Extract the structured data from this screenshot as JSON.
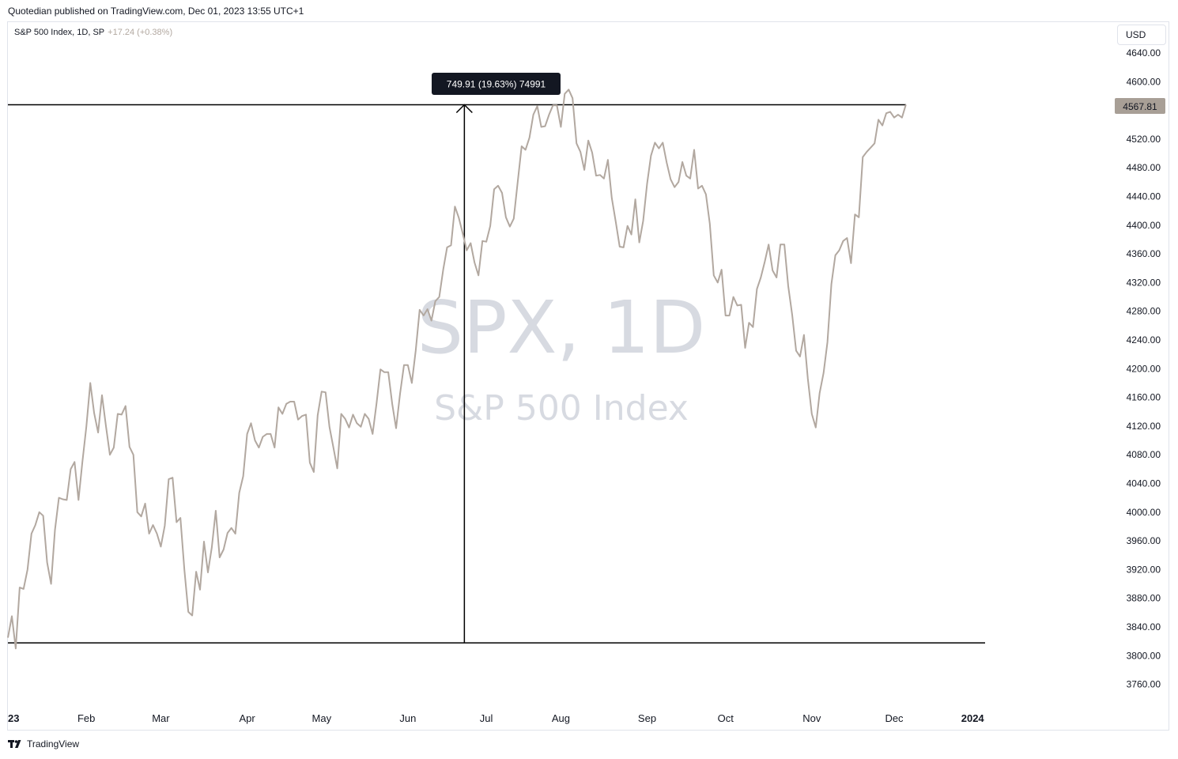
{
  "header": {
    "published": "Quotedian published on TradingView.com, Dec 01, 2023 13:55 UTC+1"
  },
  "legend": {
    "symbol": "S&P 500 Index, 1D, SP",
    "change": "+17.24 (+0.38%)"
  },
  "currency_button": "USD",
  "watermark": {
    "line1": "SPX, 1D",
    "line2": "S&P 500 Index"
  },
  "measure_label": "749.91 (19.63%) 74991",
  "last_price_label": "4567.81",
  "footer": {
    "brand": "TradingView"
  },
  "colors": {
    "line": "#b2a8a0",
    "price_tag": "#a89f96",
    "annotation": "#000000",
    "watermark": "#d1d4dc"
  },
  "chart_data": {
    "type": "line",
    "title": "",
    "xlabel": "",
    "ylabel": "",
    "ylim": [
      3725,
      4680
    ],
    "grid": false,
    "y_ticks": [
      4640,
      4600,
      4560,
      4520,
      4480,
      4440,
      4400,
      4360,
      4320,
      4280,
      4240,
      4200,
      4160,
      4120,
      4080,
      4040,
      4000,
      3960,
      3920,
      3880,
      3840,
      3800,
      3760
    ],
    "y_tick_labels": [
      "4640.00",
      "4600.00",
      "4560.00",
      "4520.00",
      "4480.00",
      "4440.00",
      "4400.00",
      "4360.00",
      "4320.00",
      "4280.00",
      "4240.00",
      "4200.00",
      "4160.00",
      "4120.00",
      "4080.00",
      "4040.00",
      "4000.00",
      "3960.00",
      "3920.00",
      "3880.00",
      "3840.00",
      "3800.00",
      "3760.00"
    ],
    "x_ticks": [
      {
        "label": "23",
        "index": -1,
        "bold": true
      },
      {
        "label": "Feb",
        "index": 20
      },
      {
        "label": "Mar",
        "index": 39
      },
      {
        "label": "Apr",
        "index": 61
      },
      {
        "label": "May",
        "index": 80
      },
      {
        "label": "Jun",
        "index": 102
      },
      {
        "label": "Jul",
        "index": 122
      },
      {
        "label": "Aug",
        "index": 141
      },
      {
        "label": "Sep",
        "index": 163
      },
      {
        "label": "Oct",
        "index": 183
      },
      {
        "label": "Nov",
        "index": 205
      },
      {
        "label": "Dec",
        "index": 226
      },
      {
        "label": "2024",
        "index": 246,
        "bold": true
      }
    ],
    "series": [
      {
        "values": [
          3825,
          3855,
          3810,
          3895,
          3893,
          3920,
          3970,
          3982,
          4000,
          3995,
          3930,
          3900,
          3975,
          4020,
          4018,
          4017,
          4060,
          4070,
          4017,
          4070,
          4119,
          4180,
          4138,
          4111,
          4163,
          4120,
          4080,
          4090,
          4137,
          4136,
          4148,
          4091,
          4080,
          4000,
          3994,
          4012,
          3970,
          3982,
          3970,
          3952,
          3981,
          4046,
          4048,
          3986,
          3992,
          3920,
          3861,
          3856,
          3917,
          3892,
          3959,
          3916,
          3951,
          4002,
          3937,
          3948,
          3971,
          3978,
          3970,
          4027,
          4050,
          4109,
          4124,
          4100,
          4090,
          4105,
          4109,
          4109,
          4090,
          4146,
          4137,
          4151,
          4154,
          4154,
          4129,
          4134,
          4136,
          4069,
          4056,
          4135,
          4168,
          4167,
          4119,
          4090,
          4061,
          4137,
          4130,
          4118,
          4136,
          4124,
          4119,
          4137,
          4130,
          4109,
          4151,
          4199,
          4195,
          4195,
          4151,
          4117,
          4165,
          4205,
          4205,
          4180,
          4225,
          4282,
          4274,
          4283,
          4267,
          4294,
          4300,
          4338,
          4369,
          4372,
          4426,
          4410,
          4388,
          4365,
          4375,
          4348,
          4330,
          4378,
          4377,
          4399,
          4450,
          4455,
          4445,
          4411,
          4398,
          4409,
          4460,
          4510,
          4505,
          4522,
          4554,
          4566,
          4537,
          4538,
          4554,
          4567,
          4567,
          4537,
          4583,
          4589,
          4577,
          4514,
          4502,
          4477,
          4518,
          4501,
          4469,
          4470,
          4465,
          4491,
          4438,
          4405,
          4370,
          4369,
          4399,
          4387,
          4436,
          4376,
          4406,
          4458,
          4497,
          4515,
          4507,
          4515,
          4487,
          4464,
          4453,
          4460,
          4488,
          4469,
          4465,
          4505,
          4451,
          4455,
          4443,
          4402,
          4330,
          4320,
          4338,
          4274,
          4274,
          4300,
          4288,
          4289,
          4229,
          4264,
          4258,
          4311,
          4327,
          4349,
          4373,
          4337,
          4327,
          4373,
          4373,
          4315,
          4275,
          4225,
          4217,
          4247,
          4186,
          4137,
          4118,
          4166,
          4194,
          4237,
          4318,
          4358,
          4365,
          4378,
          4382,
          4347,
          4415,
          4411,
          4495,
          4502,
          4508,
          4514,
          4547,
          4539,
          4556,
          4558,
          4550,
          4554,
          4550,
          4568
        ]
      }
    ],
    "annotations": {
      "horizontal_lines": [
        4567.81,
        3817.9
      ],
      "measure": {
        "from": 3817.9,
        "to": 4567.81,
        "at_index": 116
      }
    }
  }
}
